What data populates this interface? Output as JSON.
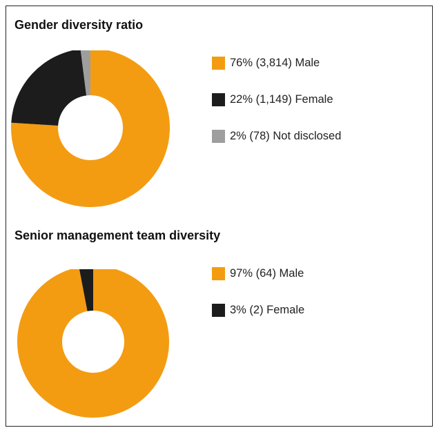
{
  "chart_data": [
    {
      "type": "pie",
      "title": "Gender diversity ratio",
      "slices": [
        {
          "label": "76% (3,814) Male",
          "percent": 76,
          "count": 3814,
          "color": "#F39C12"
        },
        {
          "label": "22% (1,149) Female",
          "percent": 22,
          "count": 1149,
          "color": "#1C1C1C"
        },
        {
          "label": "2% (78) Not disclosed",
          "percent": 2,
          "count": 78,
          "color": "#9E9E9E"
        }
      ],
      "legend_position": "right"
    },
    {
      "type": "pie",
      "title": "Senior management team diversity",
      "slices": [
        {
          "label": "97% (64) Male",
          "percent": 97,
          "count": 64,
          "color": "#F39C12"
        },
        {
          "label": "3% (2) Female",
          "percent": 3,
          "count": 2,
          "color": "#1C1C1C"
        }
      ],
      "legend_position": "right"
    }
  ]
}
